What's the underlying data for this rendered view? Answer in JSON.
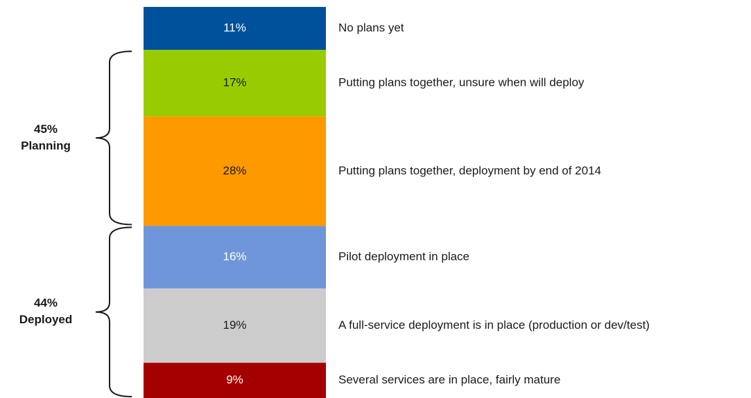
{
  "chart_data": {
    "type": "stacked_column",
    "categories": [
      "No plans yet",
      "Putting plans together, unsure when will deploy",
      "Putting plans together, deployment by end of 2014",
      "Pilot deployment in place",
      "A full-service deployment is in place (production or dev/test)",
      "Several services are in place, fairly mature"
    ],
    "values": [
      11,
      17,
      28,
      16,
      19,
      9
    ],
    "value_labels": [
      "11%",
      "17%",
      "28%",
      "16%",
      "19%",
      "9%"
    ],
    "colors": [
      "#00519b",
      "#99cc00",
      "#ff9900",
      "#6f96d8",
      "#cccccc",
      "#a50000"
    ],
    "label_colors": [
      "#ffffff",
      "#1a1a1a",
      "#1a1a1a",
      "#ffffff",
      "#1a1a1a",
      "#ffffff"
    ],
    "groups": [
      {
        "name": "Planning",
        "value": 45,
        "value_label": "45%",
        "members": [
          1,
          2
        ]
      },
      {
        "name": "Deployed",
        "value": 44,
        "value_label": "44%",
        "members": [
          3,
          4,
          5
        ]
      }
    ]
  }
}
